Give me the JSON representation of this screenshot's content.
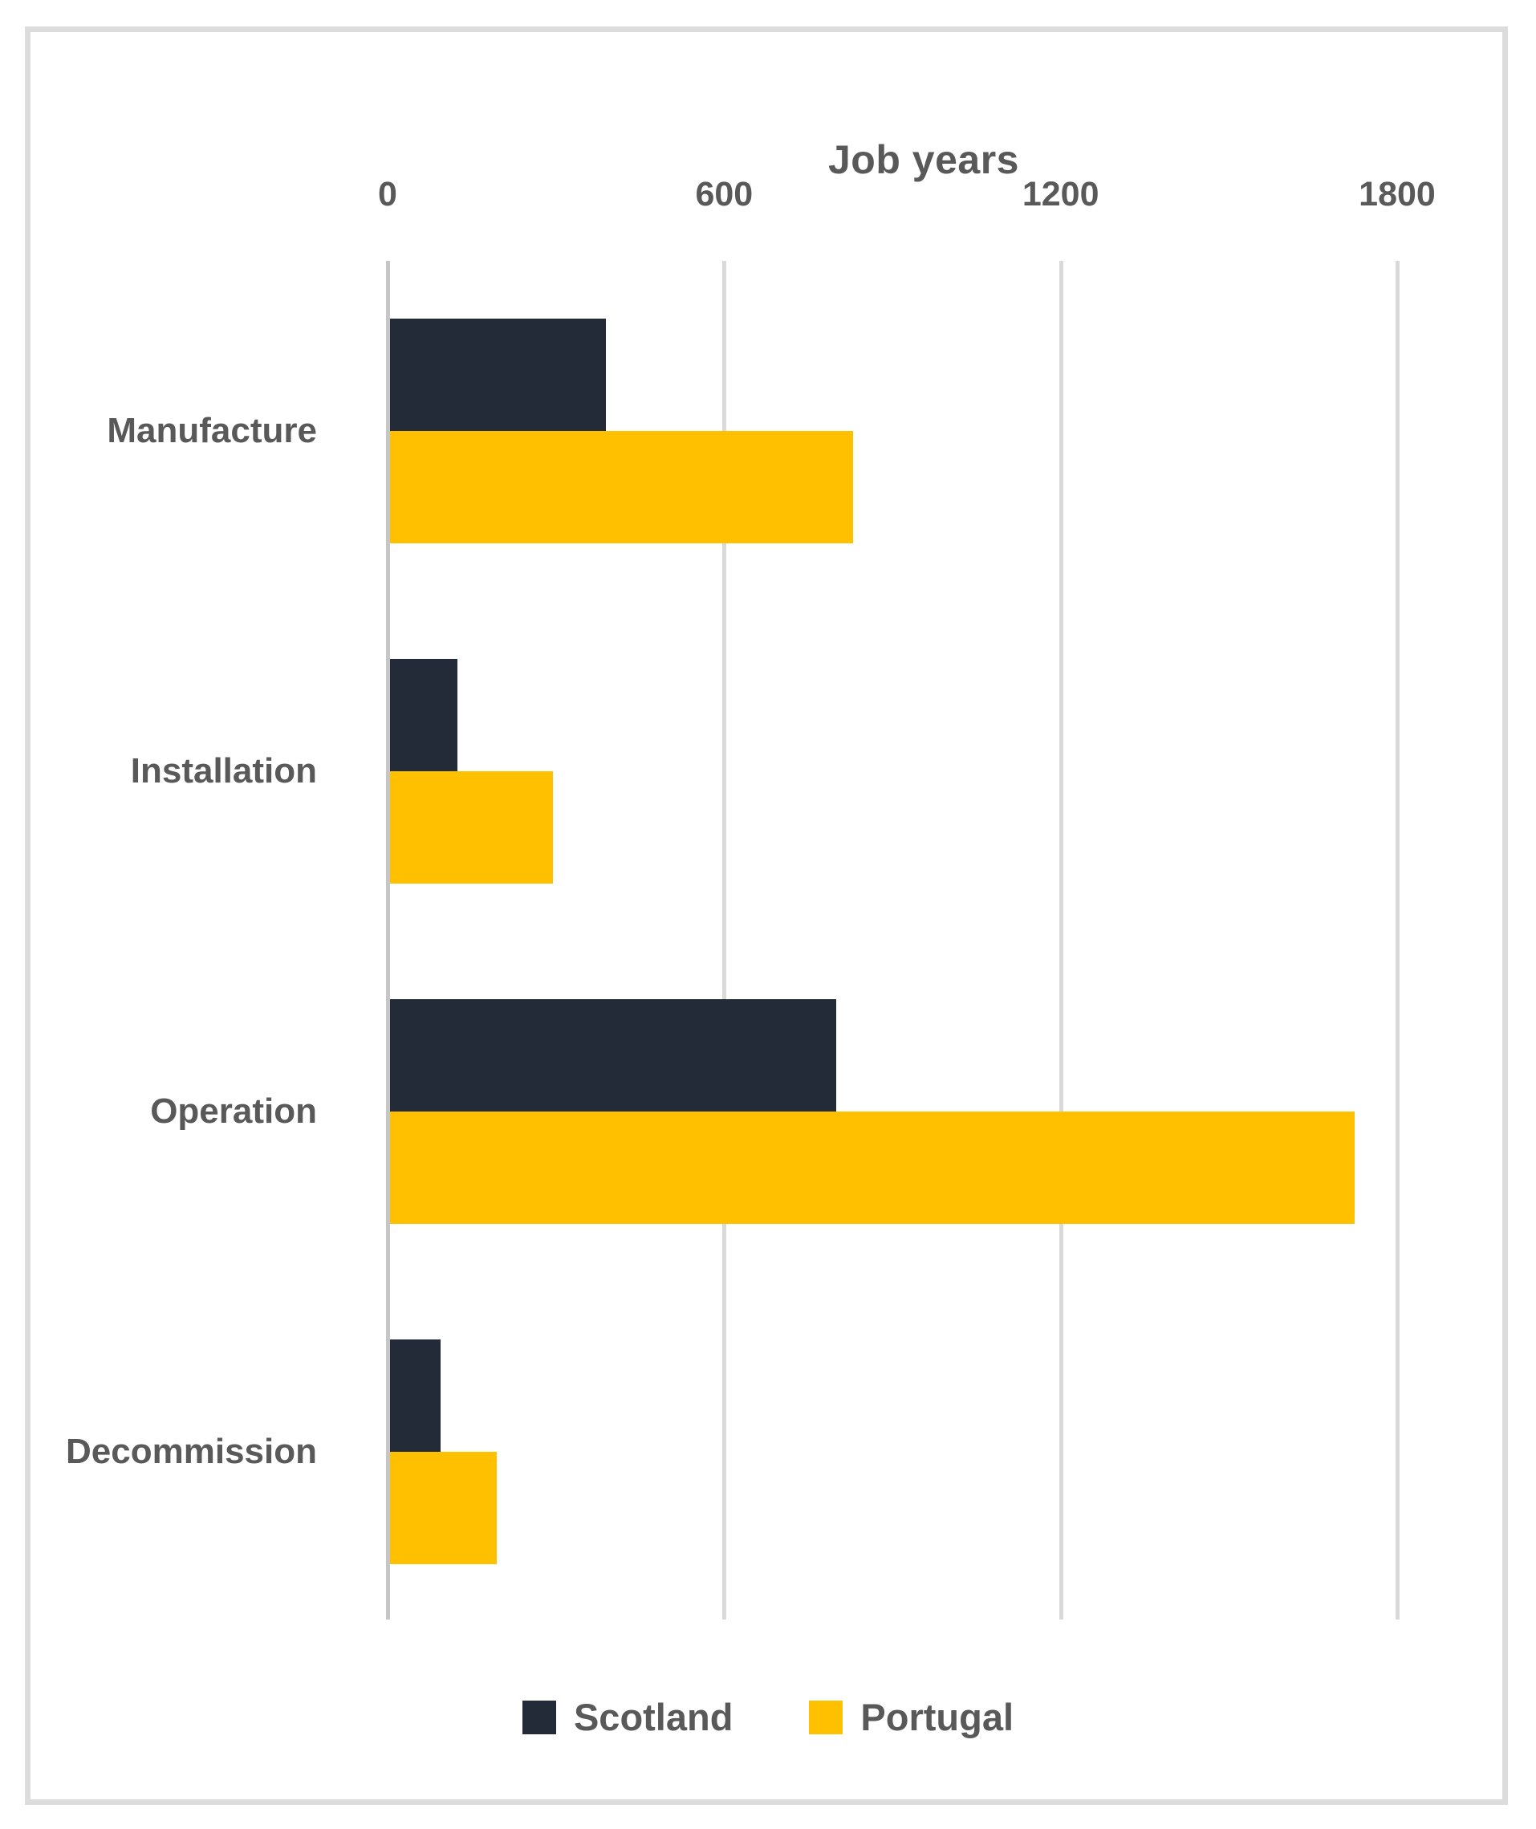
{
  "chart_data": {
    "type": "bar",
    "orientation": "horizontal",
    "title": "Job years",
    "categories": [
      "Manufacture",
      "Installation",
      "Operation",
      "Decommission"
    ],
    "series": [
      {
        "name": "Scotland",
        "color": "#232B38",
        "values": [
          385,
          120,
          795,
          90
        ]
      },
      {
        "name": "Portugal",
        "color": "#FFC000",
        "values": [
          825,
          290,
          1720,
          190
        ]
      }
    ],
    "x_ticks": [
      0,
      600,
      1200,
      1800
    ],
    "xlim": [
      0,
      1800
    ],
    "xlabel": "",
    "ylabel": "",
    "grid": "vertical-only",
    "legend_position": "bottom"
  },
  "styles": {
    "text_color": "#595959",
    "gridline_color": "#D9D9D9",
    "axis_line_color": "#C6C6C6",
    "frame_border_color": "#DCDCDC",
    "background_color": "#FFFFFF"
  }
}
